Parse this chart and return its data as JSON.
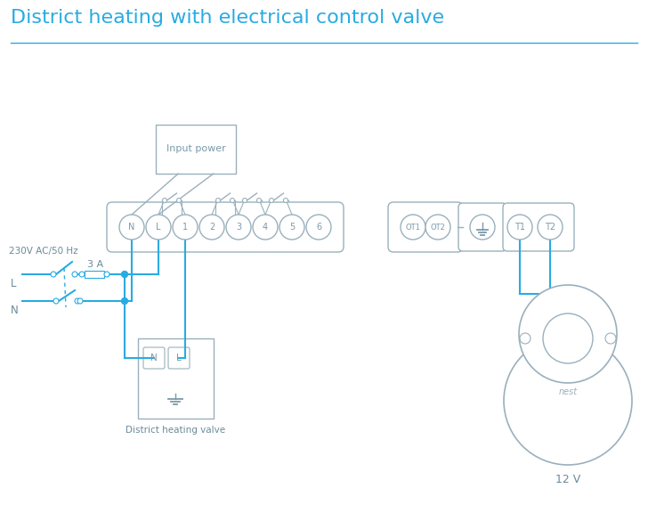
{
  "title": "District heating with electrical control valve",
  "title_color": "#29abe2",
  "title_fontsize": 16,
  "bg_color": "#ffffff",
  "line_color": "#29abe2",
  "gray_color": "#9ab0bc",
  "dark_gray": "#7a9aaa",
  "label_color": "#6a8a9a",
  "terminal_labels": [
    "N",
    "L",
    "1",
    "2",
    "3",
    "4",
    "5",
    "6"
  ],
  "ot_labels": [
    "OT1",
    "OT2"
  ],
  "right_labels": [
    "T1",
    "T2"
  ],
  "diagram_label1": "District heating valve",
  "diagram_label2": "Input power",
  "diagram_label3": "230V AC/50 Hz",
  "diagram_label4": "3 A",
  "diagram_label5": "L",
  "diagram_label6": "N",
  "diagram_label7": "12 V",
  "nest_label": "nest"
}
